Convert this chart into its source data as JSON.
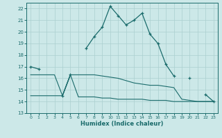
{
  "xlabel": "Humidex (Indice chaleur)",
  "background_color": "#cce8e8",
  "grid_color": "#aacfcf",
  "line_color": "#1a6b6b",
  "xlim": [
    -0.5,
    23.5
  ],
  "ylim": [
    13,
    22.5
  ],
  "yticks": [
    13,
    14,
    15,
    16,
    17,
    18,
    19,
    20,
    21,
    22
  ],
  "xticks": [
    0,
    1,
    2,
    3,
    4,
    5,
    6,
    7,
    8,
    9,
    10,
    11,
    12,
    13,
    14,
    15,
    16,
    17,
    18,
    19,
    20,
    21,
    22,
    23
  ],
  "series1_y": [
    17.0,
    16.8,
    null,
    null,
    14.5,
    16.3,
    null,
    18.6,
    19.6,
    20.4,
    22.2,
    21.4,
    20.6,
    21.0,
    21.6,
    19.8,
    19.0,
    17.2,
    16.2,
    null,
    16.0,
    null,
    14.6,
    14.0
  ],
  "series2_y": [
    16.3,
    16.3,
    16.3,
    16.3,
    14.5,
    16.3,
    16.3,
    16.3,
    16.3,
    16.2,
    16.1,
    16.0,
    15.8,
    15.6,
    15.5,
    15.4,
    15.4,
    15.3,
    15.2,
    14.2,
    14.1,
    14.0,
    14.0,
    14.0
  ],
  "series3_y": [
    14.5,
    14.5,
    14.5,
    14.5,
    14.5,
    16.3,
    14.4,
    14.4,
    14.4,
    14.3,
    14.3,
    14.2,
    14.2,
    14.2,
    14.2,
    14.1,
    14.1,
    14.1,
    14.0,
    14.0,
    14.0,
    14.0,
    14.0,
    14.0
  ]
}
